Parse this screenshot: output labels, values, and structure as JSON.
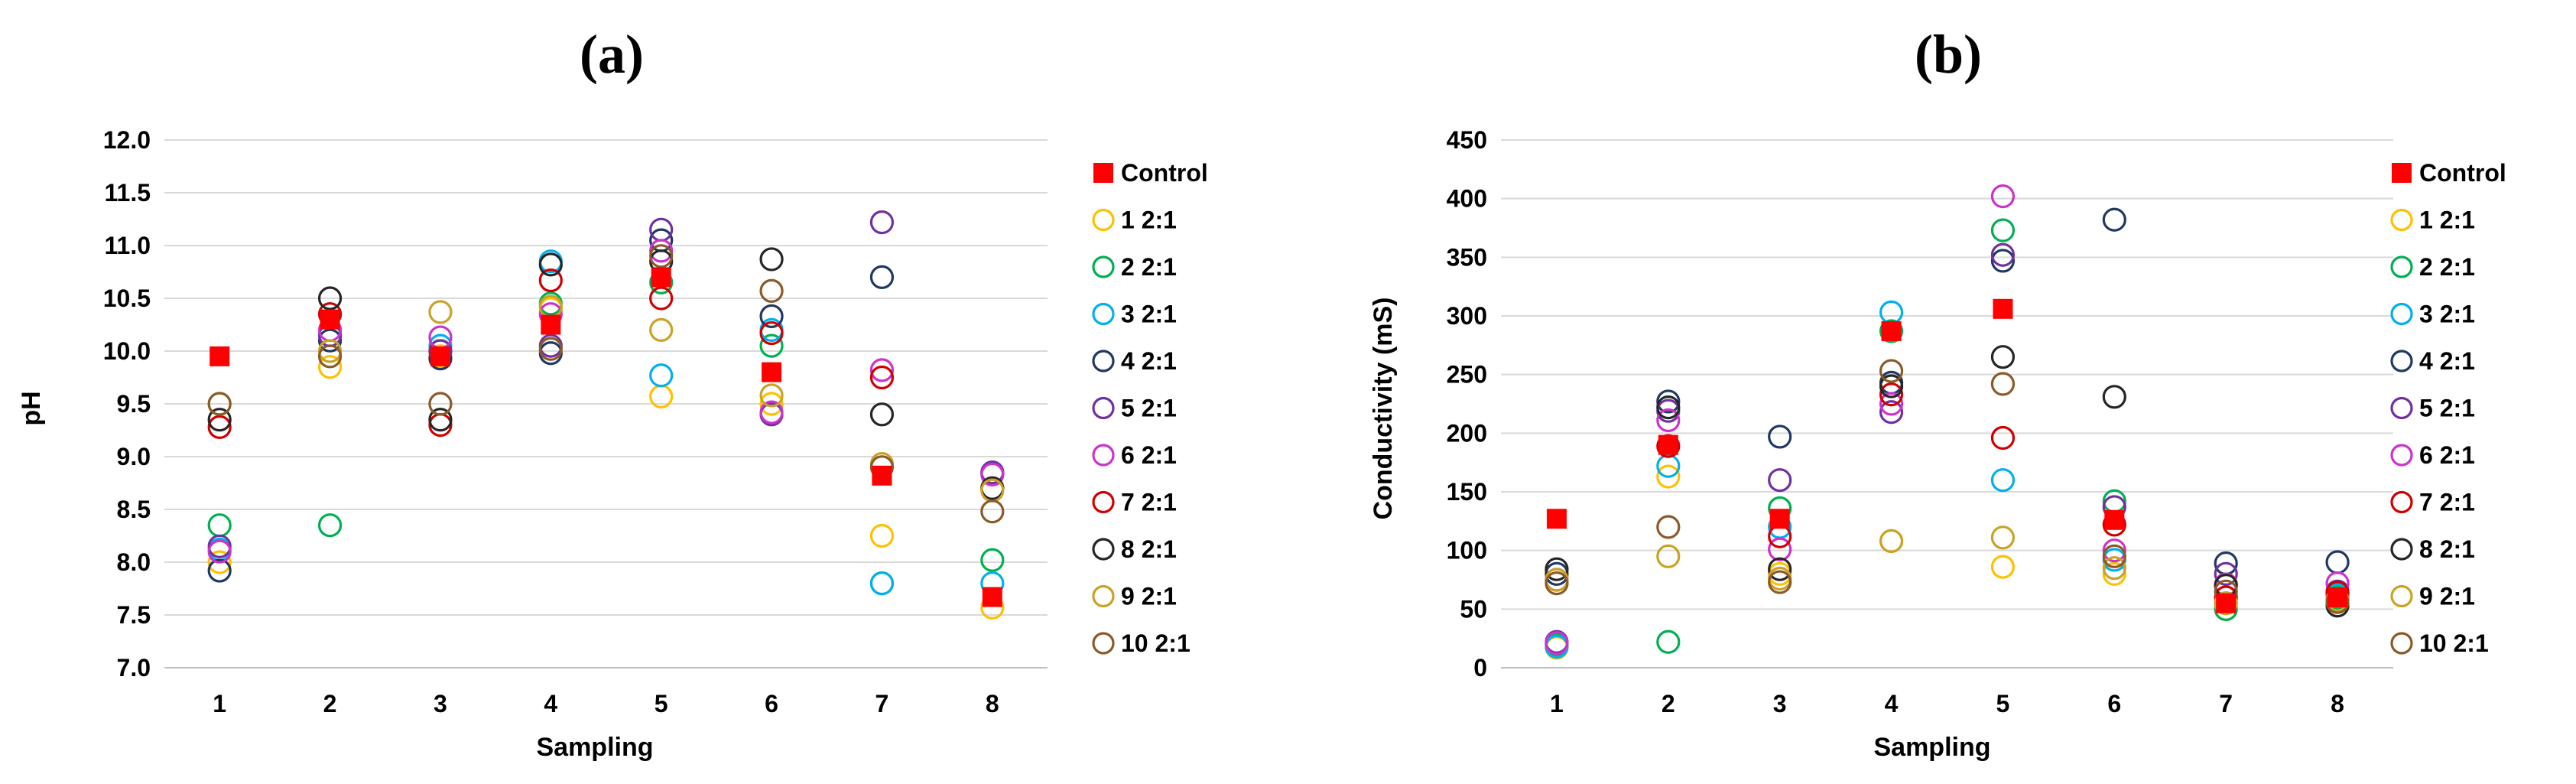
{
  "chart_data": [
    {
      "type": "scatter",
      "panel_label": "(a)",
      "xlabel": "Sampling",
      "ylabel": "pH",
      "x": [
        1,
        2,
        3,
        4,
        5,
        6,
        7,
        8
      ],
      "xlim": [
        0.5,
        8.5
      ],
      "ylim": [
        7.0,
        12.0
      ],
      "yticks": [
        "7.0",
        "7.5",
        "8.0",
        "8.5",
        "9.0",
        "9.5",
        "10.0",
        "10.5",
        "11.0",
        "11.5",
        "12.0"
      ],
      "grid": "horizontal",
      "legend_position": "right",
      "series": [
        {
          "name": "Control",
          "marker": "filled-square",
          "color": "#ff0000",
          "values": [
            9.95,
            10.3,
            9.95,
            10.25,
            10.7,
            9.8,
            8.82,
            7.67
          ]
        },
        {
          "name": "1 2:1",
          "marker": "circle",
          "color": "#ffc000",
          "values": [
            8.0,
            9.85,
            9.95,
            10.4,
            9.57,
            9.5,
            8.25,
            7.57
          ]
        },
        {
          "name": "2 2:1",
          "marker": "circle",
          "color": "#00b050",
          "values": [
            8.35,
            8.35,
            10.0,
            10.45,
            10.65,
            10.05,
            7.8,
            8.02
          ]
        },
        {
          "name": "3 2:1",
          "marker": "circle",
          "color": "#00b0f0",
          "values": [
            8.12,
            10.15,
            10.05,
            10.85,
            9.77,
            10.2,
            7.8,
            7.8
          ]
        },
        {
          "name": "4 2:1",
          "marker": "circle",
          "color": "#203864",
          "values": [
            7.92,
            10.1,
            9.93,
            9.98,
            11.05,
            10.33,
            10.7,
            8.85
          ]
        },
        {
          "name": "5 2:1",
          "marker": "circle",
          "color": "#7030a0",
          "values": [
            8.15,
            10.15,
            10.0,
            10.05,
            11.15,
            9.4,
            11.22,
            8.85
          ]
        },
        {
          "name": "6 2:1",
          "marker": "circle",
          "color": "#cc33cc",
          "values": [
            8.1,
            10.2,
            10.13,
            10.35,
            10.95,
            9.42,
            9.82,
            8.83
          ]
        },
        {
          "name": "7 2:1",
          "marker": "circle",
          "color": "#d00000",
          "values": [
            9.28,
            10.35,
            9.3,
            10.67,
            10.5,
            10.17,
            9.75,
            8.7
          ]
        },
        {
          "name": "8 2:1",
          "marker": "circle",
          "color": "#262626",
          "values": [
            9.35,
            10.5,
            9.35,
            10.82,
            10.85,
            10.87,
            9.4,
            8.7
          ]
        },
        {
          "name": "9 2:1",
          "marker": "circle",
          "color": "#c9a227",
          "values": [
            9.5,
            10.0,
            10.37,
            10.42,
            10.2,
            9.58,
            8.93,
            8.68
          ]
        },
        {
          "name": "10 2:1",
          "marker": "circle",
          "color": "#8c5a28",
          "values": [
            9.5,
            9.95,
            9.5,
            10.02,
            10.9,
            10.57,
            8.9,
            8.48
          ]
        }
      ]
    },
    {
      "type": "scatter",
      "panel_label": "(b)",
      "xlabel": "Sampling",
      "ylabel": "Conductivity (mS)",
      "x": [
        1,
        2,
        3,
        4,
        5,
        6,
        7,
        8
      ],
      "xlim": [
        0.5,
        8.5
      ],
      "ylim": [
        0,
        450
      ],
      "yticks": [
        "0",
        "50",
        "100",
        "150",
        "200",
        "250",
        "300",
        "350",
        "400",
        "450"
      ],
      "grid": "horizontal",
      "legend_position": "right",
      "series": [
        {
          "name": "Control",
          "marker": "filled-square",
          "color": "#ff0000",
          "values": [
            127,
            190,
            127,
            287,
            306,
            126,
            55,
            60
          ]
        },
        {
          "name": "1 2:1",
          "marker": "circle",
          "color": "#ffc000",
          "values": [
            17,
            163,
            80,
            108,
            86,
            80,
            50,
            58
          ]
        },
        {
          "name": "2 2:1",
          "marker": "circle",
          "color": "#00b050",
          "values": [
            20,
            22,
            136,
            287,
            373,
            142,
            50,
            60
          ]
        },
        {
          "name": "3 2:1",
          "marker": "circle",
          "color": "#00b0f0",
          "values": [
            18,
            172,
            120,
            303,
            160,
            92,
            55,
            62
          ]
        },
        {
          "name": "4 2:1",
          "marker": "circle",
          "color": "#203864",
          "values": [
            80,
            227,
            197,
            243,
            347,
            382,
            89,
            90
          ]
        },
        {
          "name": "5 2:1",
          "marker": "circle",
          "color": "#7030a0",
          "values": [
            22,
            219,
            160,
            218,
            352,
            137,
            80,
            65
          ]
        },
        {
          "name": "6 2:1",
          "marker": "circle",
          "color": "#cc33cc",
          "values": [
            21,
            211,
            101,
            225,
            402,
            100,
            71,
            72
          ]
        },
        {
          "name": "7 2:1",
          "marker": "circle",
          "color": "#d00000",
          "values": [
            75,
            189,
            112,
            233,
            196,
            122,
            60,
            64
          ]
        },
        {
          "name": "8 2:1",
          "marker": "circle",
          "color": "#262626",
          "values": [
            84,
            222,
            84,
            240,
            265,
            231,
            70,
            53
          ]
        },
        {
          "name": "9 2:1",
          "marker": "circle",
          "color": "#c9a227",
          "values": [
            75,
            95,
            76,
            108,
            111,
            85,
            55,
            58
          ]
        },
        {
          "name": "10 2:1",
          "marker": "circle",
          "color": "#8c5a28",
          "values": [
            72,
            120,
            73,
            253,
            242,
            95,
            65,
            56
          ]
        }
      ]
    }
  ]
}
